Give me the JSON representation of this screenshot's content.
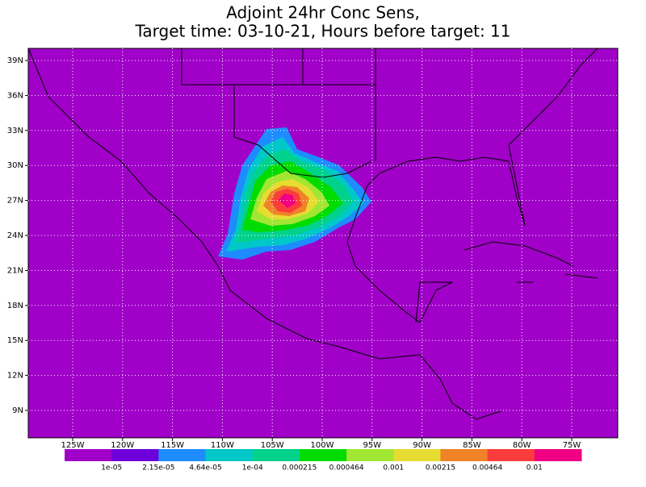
{
  "title": {
    "line1": "Adjoint 24hr Conc Sens,",
    "line2": "Target time: 03-10-21, Hours before target: 11"
  },
  "map": {
    "lat_labels": [
      "39N",
      "36N",
      "33N",
      "30N",
      "27N",
      "24N",
      "21N",
      "18N",
      "15N",
      "12N",
      "9N"
    ],
    "lon_labels": [
      "125W",
      "120W",
      "115W",
      "110W",
      "105W",
      "100W",
      "95W",
      "90W",
      "85W",
      "80W",
      "75W"
    ]
  },
  "colorbar": {
    "colors": [
      "#a000c8",
      "#6e00dc",
      "#1e8cff",
      "#00c8c8",
      "#00d28c",
      "#00dc00",
      "#a0e632",
      "#e6dc32",
      "#f08228",
      "#fa3c3c",
      "#f00082"
    ],
    "labels": [
      "1e-05",
      "2.15e-05",
      "4.64e-05",
      "1e-04",
      "0.000215",
      "0.000464",
      "0.001",
      "0.00215",
      "0.00464",
      "0.01"
    ]
  }
}
